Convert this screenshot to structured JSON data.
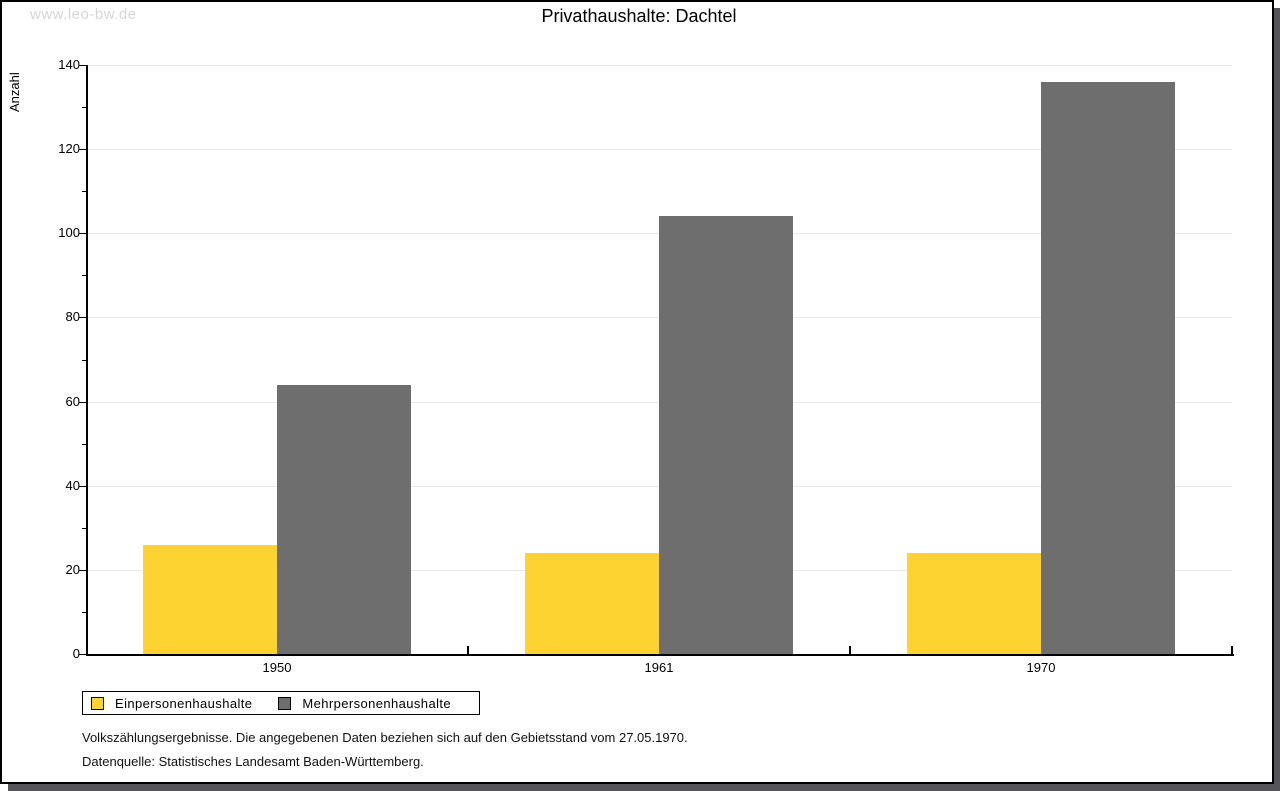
{
  "watermark": "www.leo-bw.de",
  "header": {
    "title": "Privathaushalte: Dachtel"
  },
  "chart_data": {
    "type": "bar",
    "title": "Privathaushalte: Dachtel",
    "categories": [
      "1950",
      "1961",
      "1970"
    ],
    "series": [
      {
        "name": "Einpersonenhaushalte",
        "color": "#FCD330",
        "values": [
          26,
          24,
          24
        ]
      },
      {
        "name": "Mehrpersonenhaushalte",
        "color": "#6E6E6E",
        "values": [
          64,
          104,
          136
        ]
      }
    ],
    "xlabel": "",
    "ylabel": "Anzahl",
    "ylim": [
      0,
      140
    ],
    "ytick_step": 20,
    "yminor_step": 10,
    "grid": true,
    "gridline_color": "#E9E9E9",
    "legend_position": "bottom-left"
  },
  "footer": {
    "line1": "Volkszählungsergebnisse. Die angegebenen Daten beziehen sich auf den Gebietsstand vom 27.05.1970.",
    "line2": "Datenquelle: Statistisches Landesamt Baden-Württemberg."
  }
}
